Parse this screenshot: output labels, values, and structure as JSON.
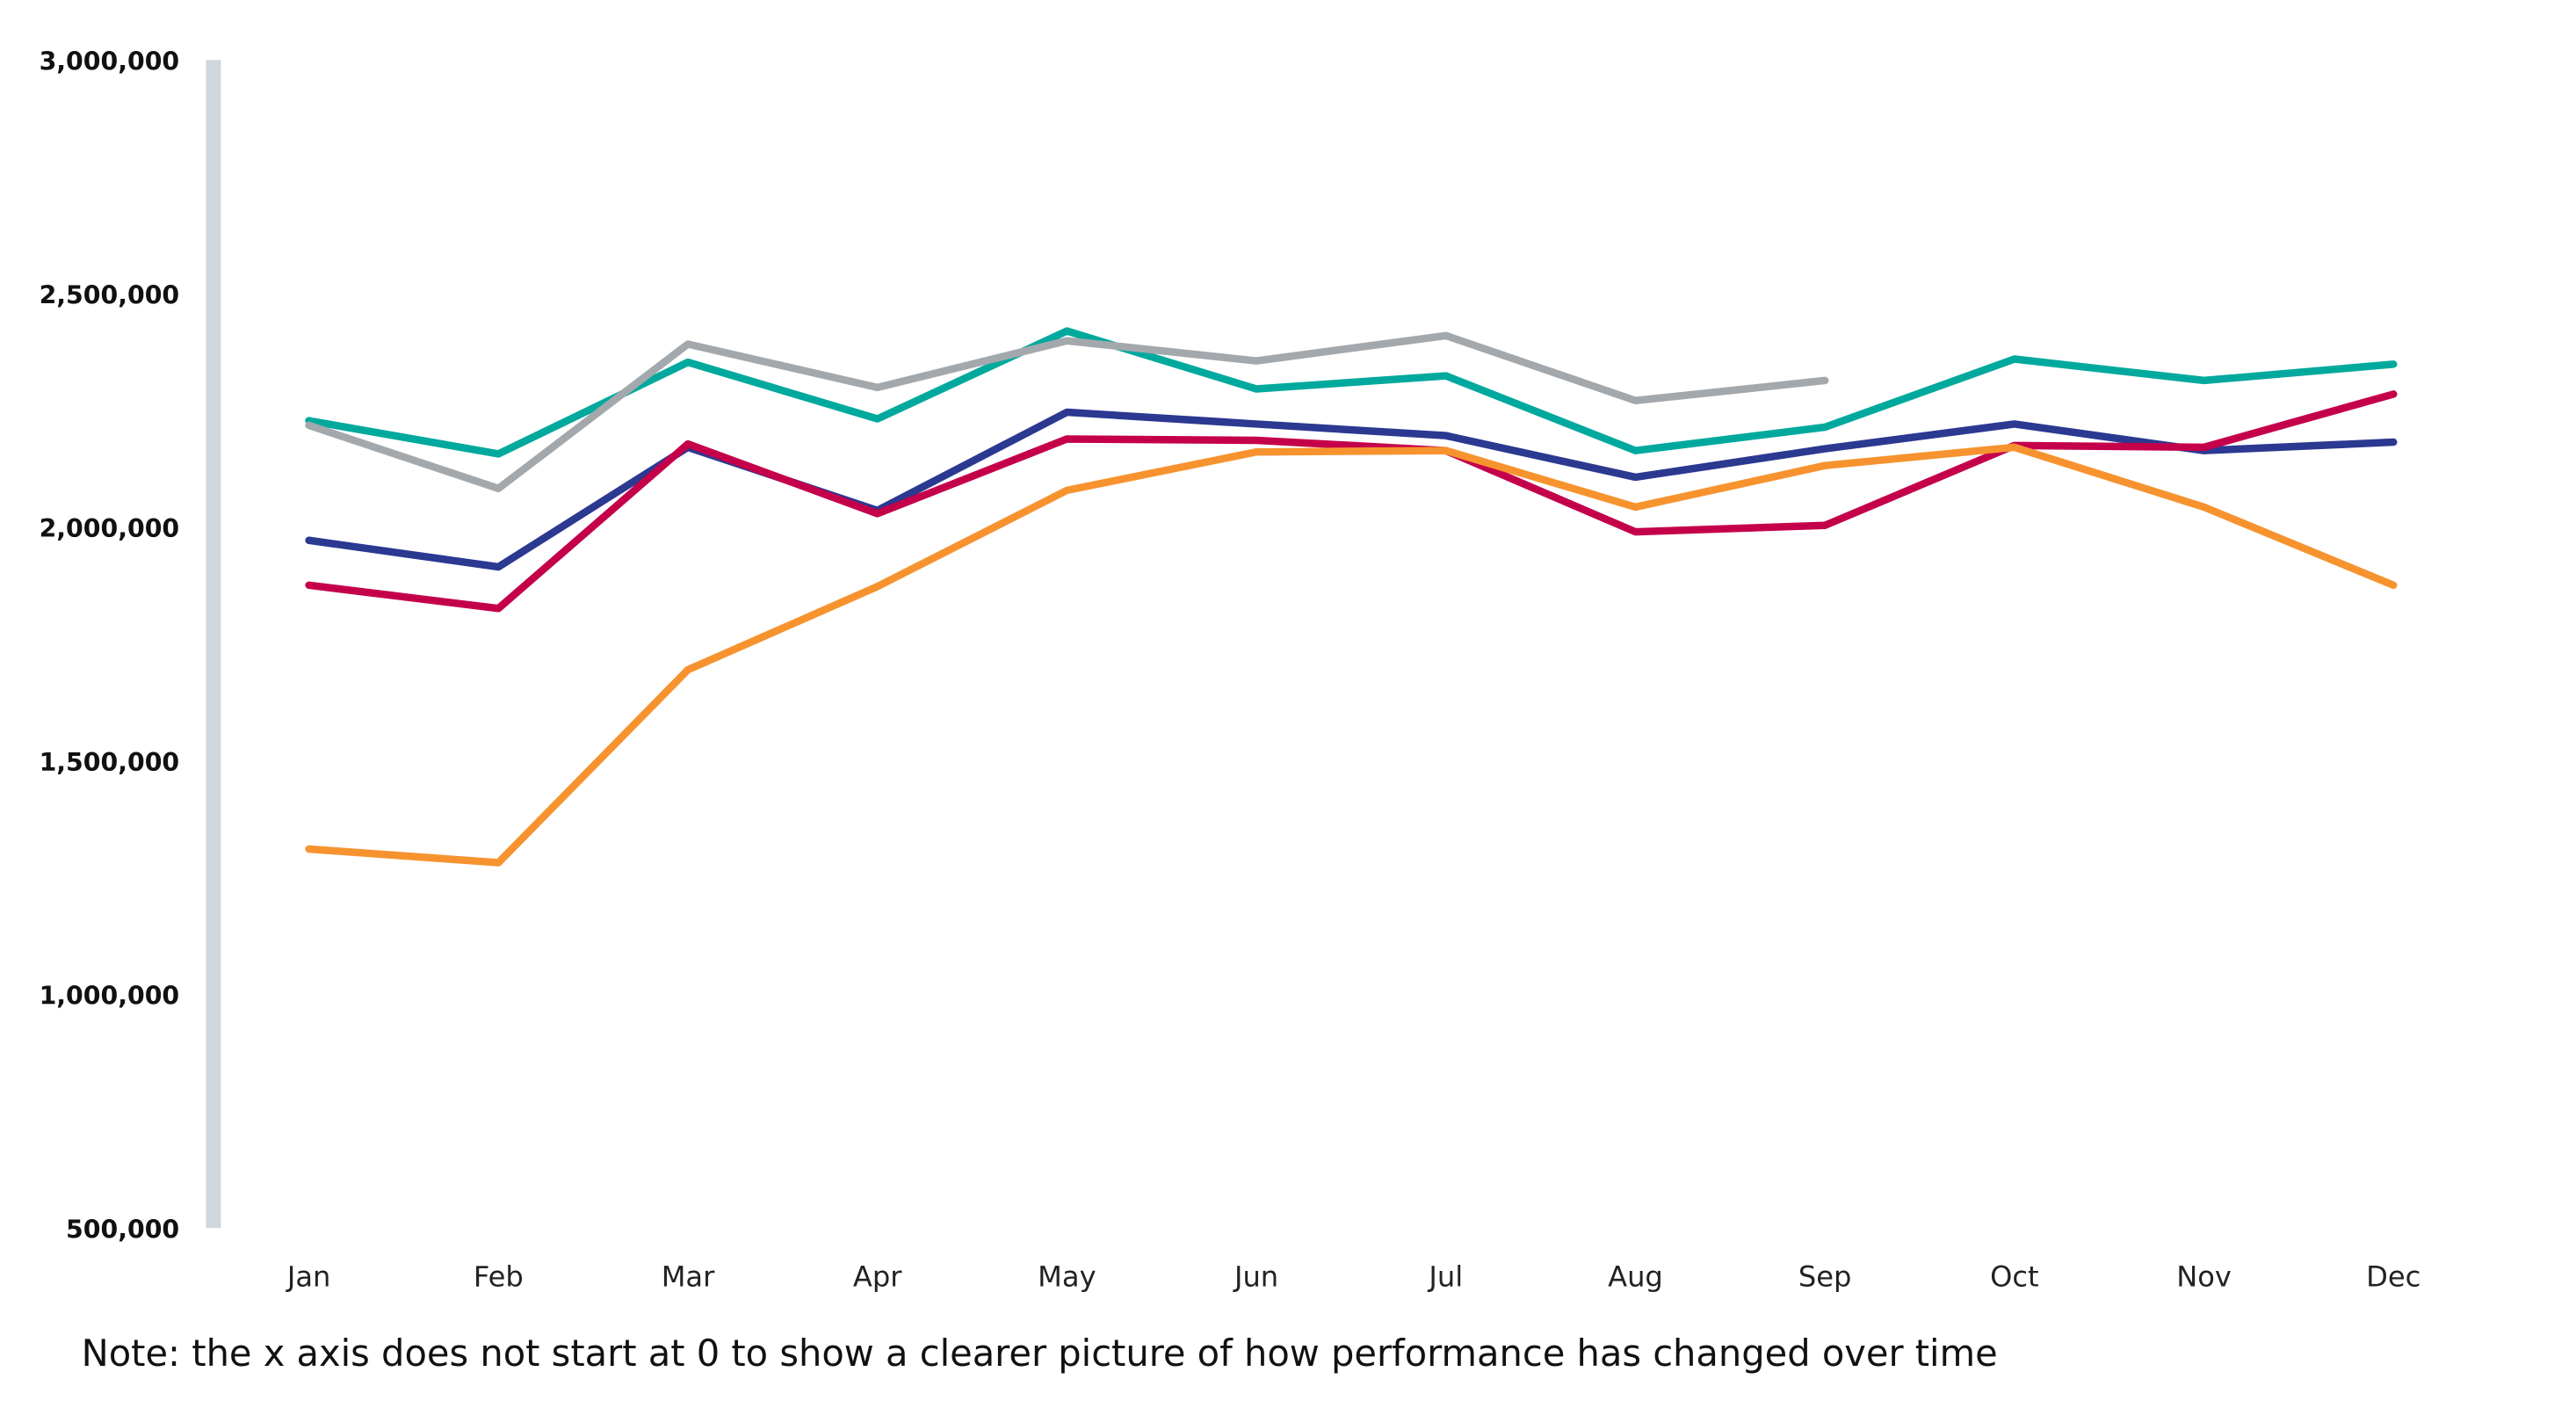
{
  "chart_data": {
    "type": "line",
    "title": "",
    "xlabel": "",
    "ylabel": "",
    "categories": [
      "Jan",
      "Feb",
      "Mar",
      "Apr",
      "May",
      "Jun",
      "Jul",
      "Aug",
      "Sep",
      "Oct",
      "Nov",
      "Dec"
    ],
    "ylim": [
      500000,
      3000000
    ],
    "yticks": [
      500000,
      1000000,
      1500000,
      2000000,
      2500000,
      3000000
    ],
    "ytick_labels": [
      "500,000",
      "1,000,000",
      "1,500,000",
      "2,000,000",
      "2,500,000",
      "3,000,000"
    ],
    "grid": false,
    "legend": "none",
    "series": [
      {
        "color": "#00A99D",
        "values": [
          2228000,
          2157000,
          2353000,
          2232000,
          2420000,
          2296000,
          2324000,
          2164000,
          2214000,
          2360000,
          2314000,
          2349000
        ]
      },
      {
        "color": "#A3A8AD",
        "values": [
          2218000,
          2083000,
          2392000,
          2299000,
          2399000,
          2356000,
          2410000,
          2271000,
          2314000,
          null,
          null,
          null
        ]
      },
      {
        "color": "#2B3990",
        "values": [
          1972000,
          1915000,
          2171000,
          2036000,
          2246000,
          2221000,
          2196000,
          2107000,
          2168000,
          2221000,
          2164000,
          2182000
        ]
      },
      {
        "color": "#C4004B",
        "values": [
          1876000,
          1826000,
          2178000,
          2029000,
          2189000,
          2186000,
          2164000,
          1990000,
          2004000,
          2175000,
          2171000,
          2285000
        ]
      },
      {
        "color": "#F7932F",
        "values": [
          1311000,
          1282000,
          1695000,
          1873000,
          2079000,
          2161000,
          2164000,
          2043000,
          2132000,
          2171000,
          2043000,
          1876000
        ]
      }
    ],
    "note": "Note: the x axis does not start at 0 to show a clearer picture of how performance has changed over time"
  },
  "colors": {
    "axis_bar": "#CFD8DC"
  }
}
